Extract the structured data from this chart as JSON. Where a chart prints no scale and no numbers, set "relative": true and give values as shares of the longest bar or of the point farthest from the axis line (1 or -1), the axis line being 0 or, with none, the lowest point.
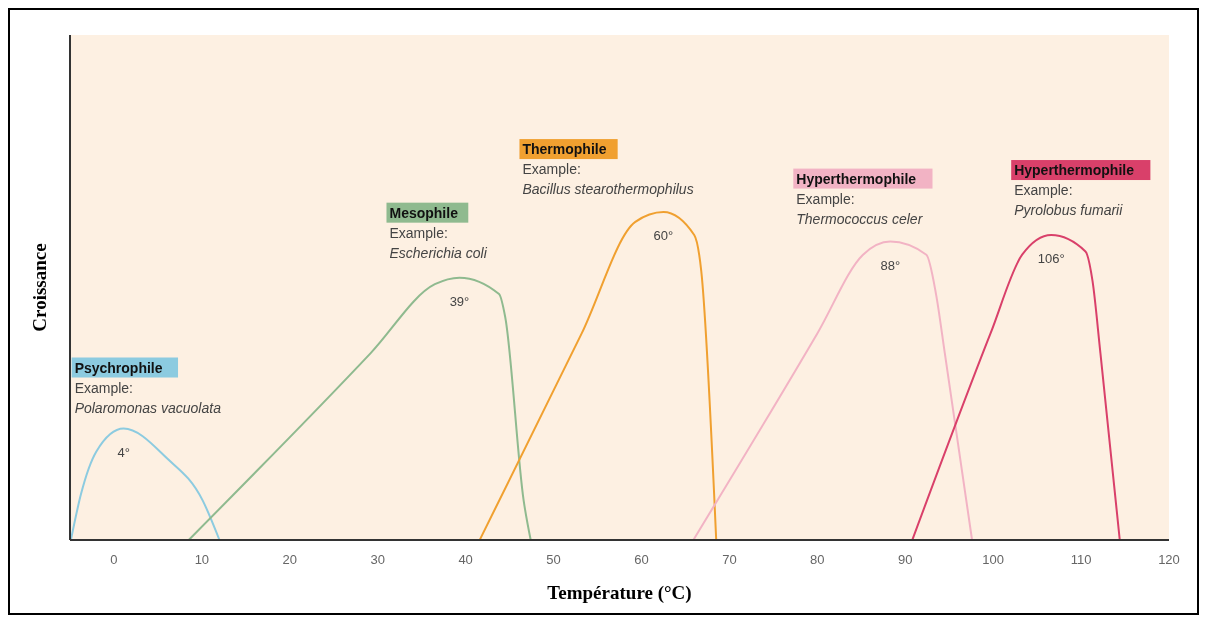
{
  "chart_data": {
    "type": "line",
    "relative": true,
    "xlabel": "Température (°C)",
    "ylabel": "Croissance",
    "xlim": [
      -5,
      120
    ],
    "xticks": [
      0,
      10,
      20,
      30,
      40,
      50,
      60,
      70,
      80,
      90,
      100,
      110,
      120
    ],
    "line_style": "solid",
    "series": [
      {
        "name": "Psychrophile",
        "color": "#8ccbe0",
        "x": [
          -4.9,
          -3.75,
          -2,
          1.1,
          6,
          10.1,
          12
        ],
        "values": [
          0,
          0.14,
          0.27,
          0.34,
          0.25,
          0.12,
          0
        ]
      },
      {
        "name": "Mesophile",
        "color": "#8fba8f",
        "x": [
          8.5,
          29.2,
          36.5,
          39.3,
          43.8,
          44.5,
          46.6,
          47.4
        ],
        "values": [
          0,
          0.57,
          0.78,
          0.8,
          0.75,
          0.68,
          0.12,
          0
        ]
      },
      {
        "name": "Thermophile",
        "color": "#f0a030",
        "x": [
          41.6,
          53.2,
          59.3,
          62.5,
          66,
          66.8,
          68.5
        ],
        "values": [
          0,
          0.63,
          0.97,
          1,
          0.93,
          0.82,
          0
        ]
      },
      {
        "name": "Hyperthermophile",
        "color": "#f2b3c4",
        "x": [
          65.9,
          80,
          85.2,
          88.3,
          92.4,
          93.5,
          94.5,
          97.6
        ],
        "values": [
          0,
          0.63,
          0.87,
          0.91,
          0.87,
          0.75,
          0.57,
          0
        ]
      },
      {
        "name": "Hyperthermophile",
        "color": "#d9406a",
        "x": [
          90.8,
          99.7,
          103.3,
          106.6,
          110.5,
          111.3,
          112.2,
          114.4
        ],
        "values": [
          0,
          0.63,
          0.87,
          0.93,
          0.88,
          0.79,
          0.57,
          0
        ]
      }
    ],
    "annotations": [
      "Example:",
      "Polaromonas vacuolata",
      "4°",
      "Example:",
      "Escherichia coli",
      "39°",
      "Example:",
      "Bacillus stearothermophilus",
      "60°",
      "Example:",
      "Thermococcus celer",
      "88°",
      "Example:",
      "Pyrolobus fumarii",
      "106°"
    ]
  }
}
